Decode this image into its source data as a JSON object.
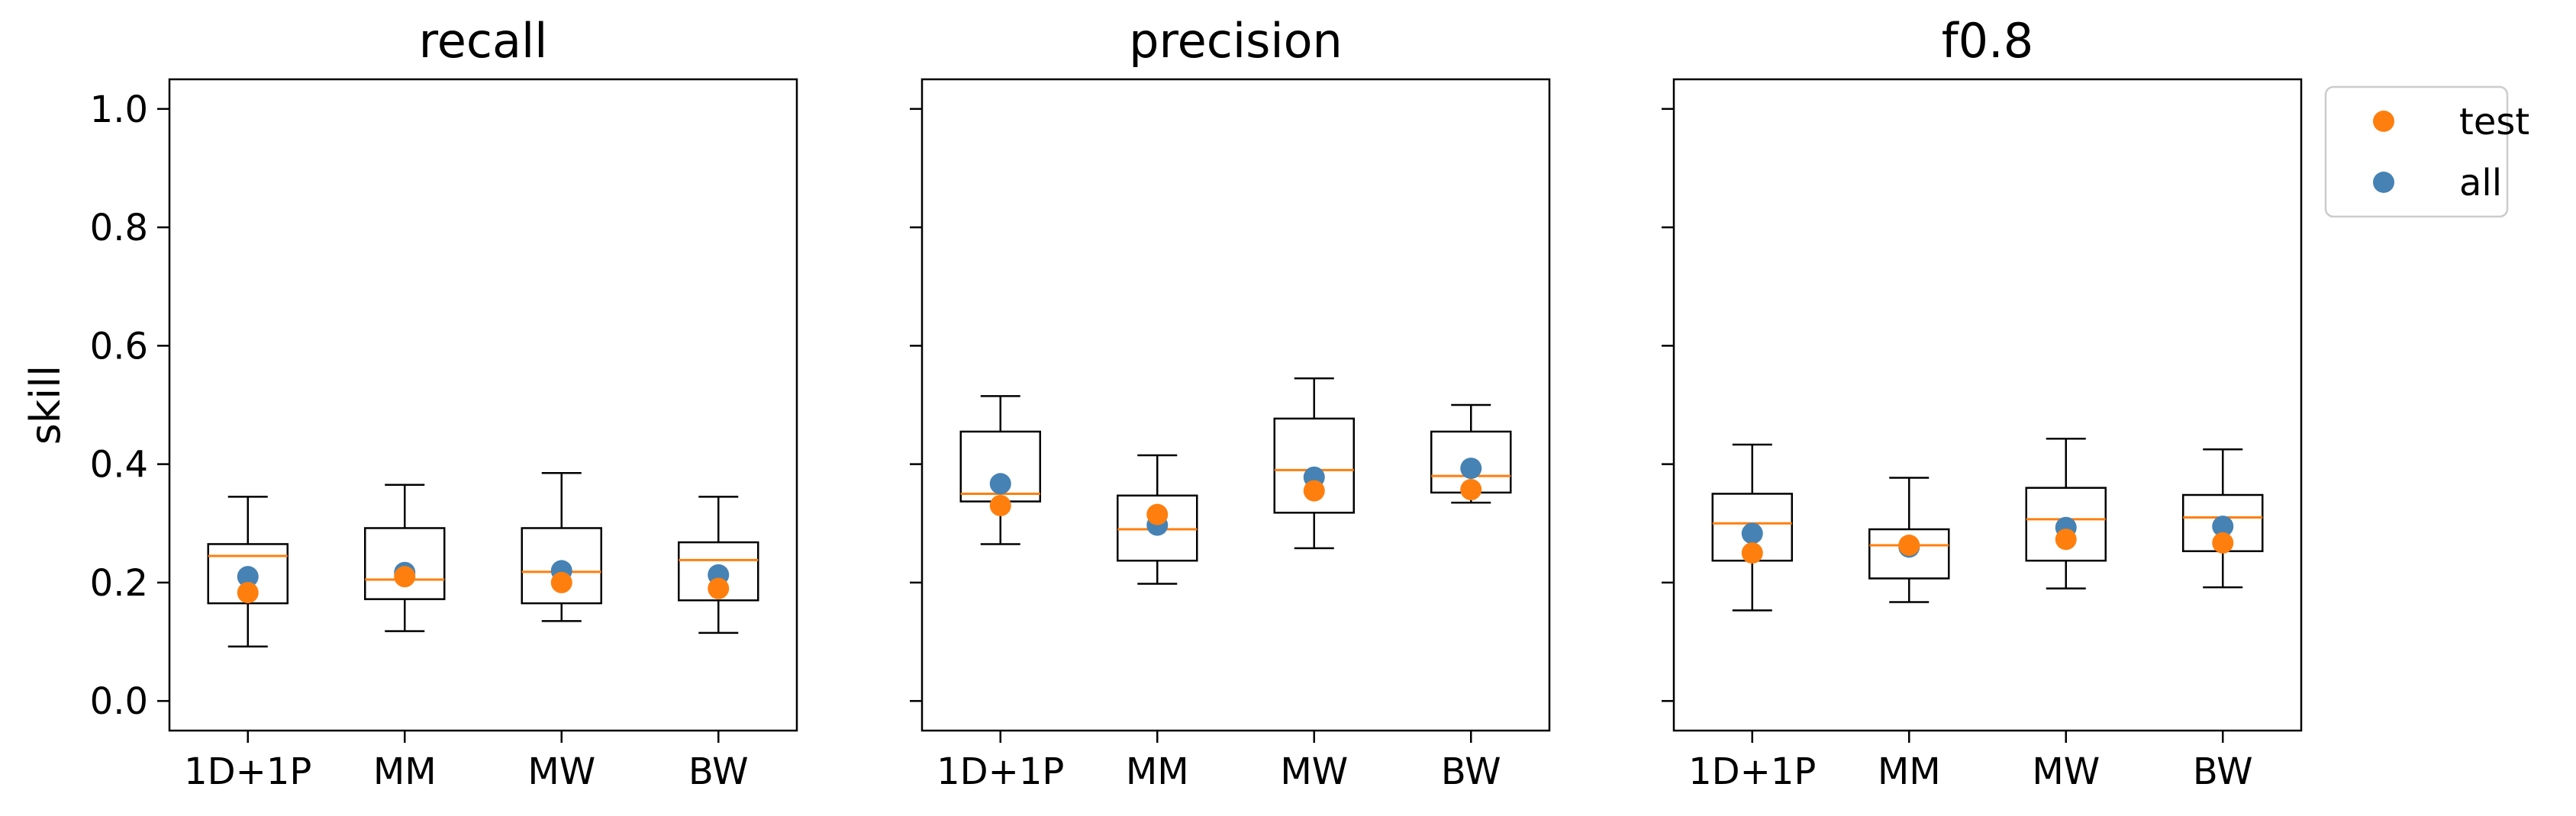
{
  "chart_data": [
    {
      "type": "box",
      "title": "recall",
      "ylabel": "skill",
      "ylim": [
        -0.05,
        1.05
      ],
      "yticks": [
        "0.0",
        "0.2",
        "0.4",
        "0.6",
        "0.8",
        "1.0"
      ],
      "categories": [
        "1D+1P",
        "MM",
        "MW",
        "BW"
      ],
      "boxes": [
        {
          "whisker_low": 0.092,
          "q1": 0.165,
          "median": 0.245,
          "q3": 0.265,
          "whisker_high": 0.345
        },
        {
          "whisker_low": 0.118,
          "q1": 0.172,
          "median": 0.205,
          "q3": 0.292,
          "whisker_high": 0.365
        },
        {
          "whisker_low": 0.135,
          "q1": 0.165,
          "median": 0.218,
          "q3": 0.292,
          "whisker_high": 0.385
        },
        {
          "whisker_low": 0.115,
          "q1": 0.17,
          "median": 0.238,
          "q3": 0.268,
          "whisker_high": 0.345
        }
      ],
      "series": [
        {
          "name": "test",
          "values": [
            0.183,
            0.21,
            0.2,
            0.19
          ]
        },
        {
          "name": "all",
          "values": [
            0.21,
            0.217,
            0.22,
            0.213
          ]
        }
      ]
    },
    {
      "type": "box",
      "title": "precision",
      "ylim": [
        -0.05,
        1.05
      ],
      "categories": [
        "1D+1P",
        "MM",
        "MW",
        "BW"
      ],
      "boxes": [
        {
          "whisker_low": 0.265,
          "q1": 0.337,
          "median": 0.35,
          "q3": 0.455,
          "whisker_high": 0.515
        },
        {
          "whisker_low": 0.198,
          "q1": 0.237,
          "median": 0.29,
          "q3": 0.347,
          "whisker_high": 0.415
        },
        {
          "whisker_low": 0.258,
          "q1": 0.318,
          "median": 0.39,
          "q3": 0.477,
          "whisker_high": 0.545
        },
        {
          "whisker_low": 0.335,
          "q1": 0.352,
          "median": 0.38,
          "q3": 0.455,
          "whisker_high": 0.5
        }
      ],
      "series": [
        {
          "name": "test",
          "values": [
            0.33,
            0.315,
            0.355,
            0.357
          ]
        },
        {
          "name": "all",
          "values": [
            0.367,
            0.297,
            0.378,
            0.393
          ]
        }
      ]
    },
    {
      "type": "box",
      "title": "f0.8",
      "ylim": [
        -0.05,
        1.05
      ],
      "categories": [
        "1D+1P",
        "MM",
        "MW",
        "BW"
      ],
      "boxes": [
        {
          "whisker_low": 0.153,
          "q1": 0.237,
          "median": 0.3,
          "q3": 0.35,
          "whisker_high": 0.433
        },
        {
          "whisker_low": 0.167,
          "q1": 0.207,
          "median": 0.263,
          "q3": 0.29,
          "whisker_high": 0.377
        },
        {
          "whisker_low": 0.19,
          "q1": 0.237,
          "median": 0.307,
          "q3": 0.36,
          "whisker_high": 0.443
        },
        {
          "whisker_low": 0.192,
          "q1": 0.253,
          "median": 0.31,
          "q3": 0.348,
          "whisker_high": 0.425
        }
      ],
      "series": [
        {
          "name": "test",
          "values": [
            0.25,
            0.263,
            0.273,
            0.267
          ]
        },
        {
          "name": "all",
          "values": [
            0.283,
            0.26,
            0.293,
            0.295
          ]
        }
      ]
    }
  ],
  "legend": {
    "placement": "outside-top-right",
    "entries": [
      {
        "label": "test",
        "color": "#ff7f0e"
      },
      {
        "label": "all",
        "color": "#4682b4"
      }
    ]
  },
  "colors": {
    "median_line": "#ff7f0e",
    "test_marker": "#ff7f0e",
    "all_marker": "#4682b4",
    "box_edge": "#000000"
  }
}
